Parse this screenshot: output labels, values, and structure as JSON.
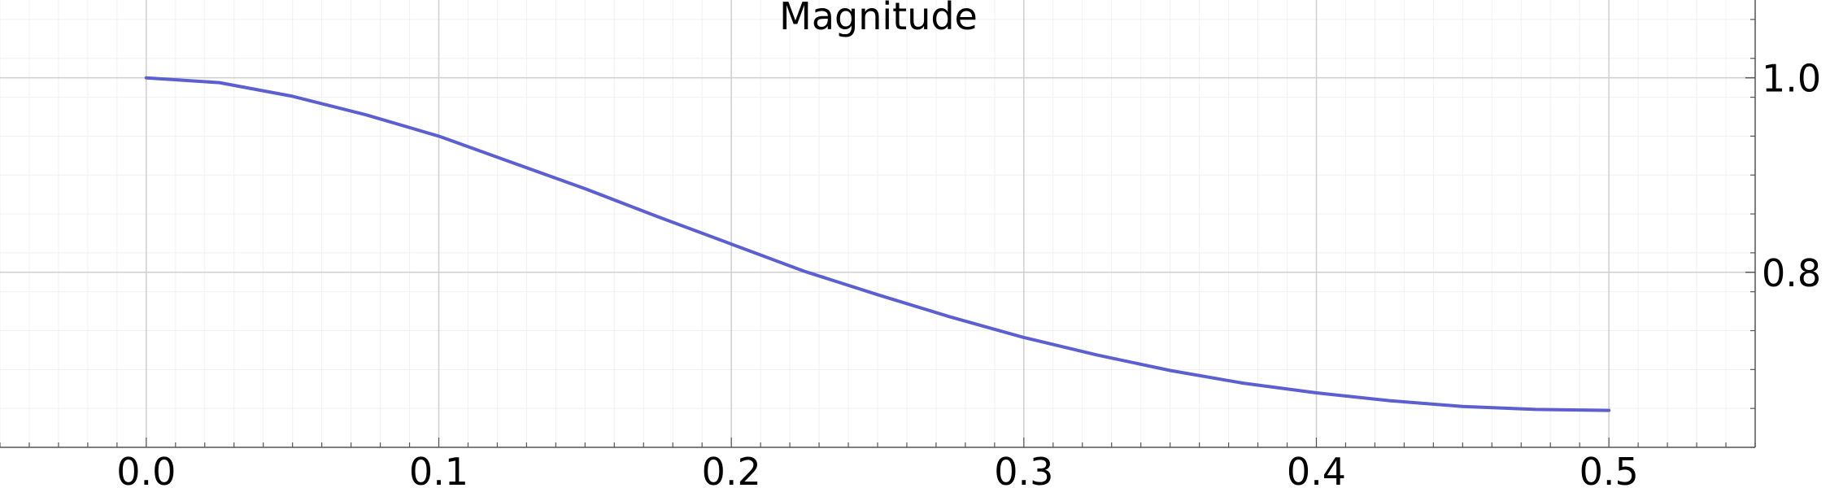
{
  "chart_data": {
    "type": "line",
    "title": "Magnitude",
    "xlabel": "",
    "ylabel": "",
    "xlim": [
      -0.05,
      0.55
    ],
    "ylim": [
      0.62,
      1.08
    ],
    "x_ticks": [
      0.0,
      0.1,
      0.2,
      0.3,
      0.4,
      0.5
    ],
    "x_tick_labels": [
      "0.0",
      "0.1",
      "0.2",
      "0.3",
      "0.4",
      "0.5"
    ],
    "y_ticks": [
      0.8,
      1.0
    ],
    "y_tick_labels": [
      "0.8",
      "1.0"
    ],
    "y_axis_position": "right",
    "grid": true,
    "legend": "none",
    "series": [
      {
        "color": "#5b5fd0",
        "x": [
          0.0,
          0.025,
          0.05,
          0.075,
          0.1,
          0.125,
          0.15,
          0.175,
          0.2,
          0.225,
          0.25,
          0.275,
          0.3,
          0.325,
          0.35,
          0.375,
          0.4,
          0.425,
          0.45,
          0.475,
          0.5
        ],
        "y": [
          1.0,
          0.995,
          0.981,
          0.962,
          0.94,
          0.913,
          0.886,
          0.857,
          0.829,
          0.801,
          0.777,
          0.754,
          0.733,
          0.715,
          0.699,
          0.686,
          0.676,
          0.668,
          0.662,
          0.659,
          0.658
        ]
      }
    ]
  }
}
